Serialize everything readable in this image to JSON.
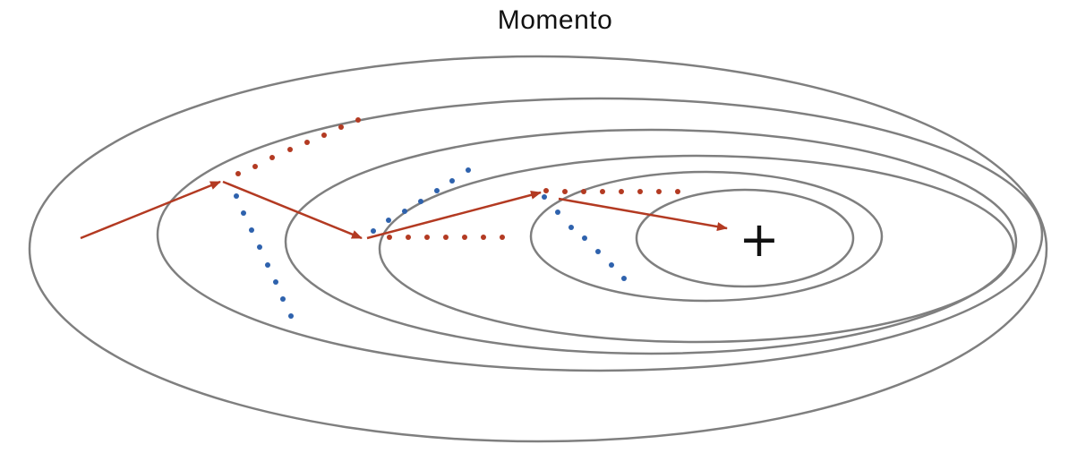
{
  "title": "Momento",
  "minimum_symbol": "+",
  "colors": {
    "contour": "#7f7f7f",
    "momentum_path": "#b33a22",
    "red_dots": "#b33a22",
    "blue_dots": "#2e62ad",
    "minimum": "#111111"
  }
}
